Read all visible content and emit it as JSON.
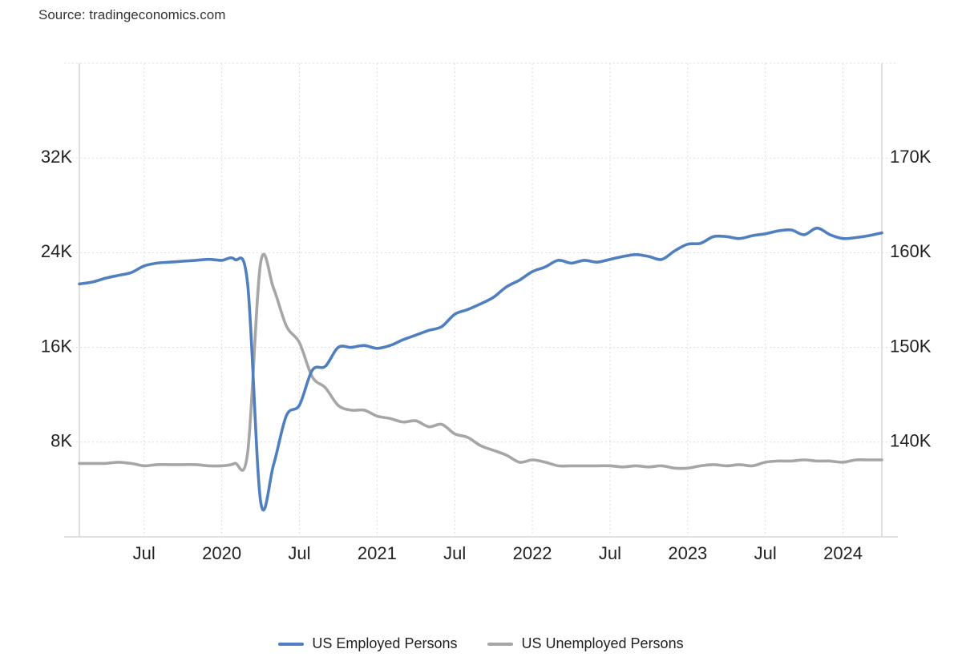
{
  "source": "Source: tradingeconomics.com",
  "colors": {
    "employed": "#4f7fbf",
    "unemployed": "#a6a6a6",
    "grid": "#dcdcdc"
  },
  "chart_data": {
    "type": "line",
    "title": "",
    "grid": true,
    "legend_position": "bottom",
    "x_ticks": [
      "Jul",
      "2020",
      "Jul",
      "2021",
      "Jul",
      "2022",
      "Jul",
      "2023",
      "Jul",
      "2024"
    ],
    "x_tick_dates": [
      "2019-07",
      "2020-01",
      "2020-07",
      "2021-01",
      "2021-07",
      "2022-01",
      "2022-07",
      "2023-01",
      "2023-07",
      "2024-01"
    ],
    "x_range": [
      "2019-02",
      "2024-04"
    ],
    "y_left": {
      "ticks": [
        "8K",
        "16K",
        "24K",
        "32K"
      ],
      "tick_values": [
        8000,
        16000,
        24000,
        32000
      ],
      "range": [
        0,
        40000
      ]
    },
    "y_right": {
      "ticks": [
        "140K",
        "150K",
        "160K",
        "170K"
      ],
      "tick_values": [
        140000,
        150000,
        160000,
        170000
      ],
      "range": [
        130000,
        180000
      ]
    },
    "series": [
      {
        "name": "US Employed Persons",
        "axis": "right",
        "color": "#4f7fbf",
        "x": [
          "2019-02",
          "2019-03",
          "2019-04",
          "2019-05",
          "2019-06",
          "2019-07",
          "2019-08",
          "2019-09",
          "2019-10",
          "2019-11",
          "2019-12",
          "2020-01",
          "2020-02",
          "2020-03",
          "2020-04",
          "2020-05",
          "2020-06",
          "2020-07",
          "2020-08",
          "2020-09",
          "2020-10",
          "2020-11",
          "2020-12",
          "2021-01",
          "2021-02",
          "2021-03",
          "2021-04",
          "2021-05",
          "2021-06",
          "2021-07",
          "2021-08",
          "2021-09",
          "2021-10",
          "2021-11",
          "2021-12",
          "2022-01",
          "2022-02",
          "2022-03",
          "2022-04",
          "2022-05",
          "2022-06",
          "2022-07",
          "2022-08",
          "2022-09",
          "2022-10",
          "2022-11",
          "2022-12",
          "2023-01",
          "2023-02",
          "2023-03",
          "2023-04",
          "2023-05",
          "2023-06",
          "2023-07",
          "2023-08",
          "2023-09",
          "2023-10",
          "2023-11",
          "2023-12",
          "2024-01",
          "2024-02",
          "2024-03",
          "2024-04"
        ],
        "values": [
          156.7,
          156.9,
          157.3,
          157.6,
          157.9,
          158.6,
          158.9,
          159.0,
          159.1,
          159.2,
          159.3,
          159.2,
          159.3,
          156.7,
          133.8,
          137.6,
          142.8,
          143.9,
          147.6,
          148.0,
          150.0,
          150.0,
          150.2,
          149.9,
          150.2,
          150.8,
          151.3,
          151.8,
          152.2,
          153.5,
          154.0,
          154.6,
          155.3,
          156.4,
          157.1,
          158.0,
          158.5,
          159.2,
          158.9,
          159.2,
          159.0,
          159.3,
          159.6,
          159.8,
          159.6,
          159.3,
          160.2,
          160.9,
          161.0,
          161.7,
          161.7,
          161.5,
          161.8,
          162.0,
          162.3,
          162.4,
          161.9,
          162.6,
          161.9,
          161.5,
          161.6,
          161.8,
          162.1
        ]
      },
      {
        "name": "US Unemployed Persons",
        "axis": "left",
        "color": "#a6a6a6",
        "x": [
          "2019-02",
          "2019-03",
          "2019-04",
          "2019-05",
          "2019-06",
          "2019-07",
          "2019-08",
          "2019-09",
          "2019-10",
          "2019-11",
          "2019-12",
          "2020-01",
          "2020-02",
          "2020-03",
          "2020-04",
          "2020-05",
          "2020-06",
          "2020-07",
          "2020-08",
          "2020-09",
          "2020-10",
          "2020-11",
          "2020-12",
          "2021-01",
          "2021-02",
          "2021-03",
          "2021-04",
          "2021-05",
          "2021-06",
          "2021-07",
          "2021-08",
          "2021-09",
          "2021-10",
          "2021-11",
          "2021-12",
          "2022-01",
          "2022-02",
          "2022-03",
          "2022-04",
          "2022-05",
          "2022-06",
          "2022-07",
          "2022-08",
          "2022-09",
          "2022-10",
          "2022-11",
          "2022-12",
          "2023-01",
          "2023-02",
          "2023-03",
          "2023-04",
          "2023-05",
          "2023-06",
          "2023-07",
          "2023-08",
          "2023-09",
          "2023-10",
          "2023-11",
          "2023-12",
          "2024-01",
          "2024-02",
          "2024-03",
          "2024-04"
        ],
        "values": [
          6.2,
          6.2,
          6.2,
          6.3,
          6.2,
          6.0,
          6.1,
          6.1,
          6.1,
          6.1,
          6.0,
          6.0,
          6.2,
          7.1,
          23.1,
          21.0,
          17.8,
          16.4,
          13.5,
          12.6,
          11.1,
          10.7,
          10.7,
          10.2,
          10.0,
          9.7,
          9.8,
          9.3,
          9.5,
          8.7,
          8.4,
          7.7,
          7.3,
          6.9,
          6.3,
          6.5,
          6.3,
          6.0,
          6.0,
          6.0,
          6.0,
          6.0,
          5.9,
          6.0,
          5.9,
          6.0,
          5.8,
          5.8,
          6.0,
          6.1,
          6.0,
          6.1,
          6.0,
          6.3,
          6.4,
          6.4,
          6.5,
          6.4,
          6.4,
          6.3,
          6.5,
          6.5,
          6.5
        ]
      }
    ]
  },
  "legend": [
    {
      "label": "US Employed Persons",
      "color": "#4f7fbf"
    },
    {
      "label": "US Unemployed Persons",
      "color": "#a6a6a6"
    }
  ]
}
